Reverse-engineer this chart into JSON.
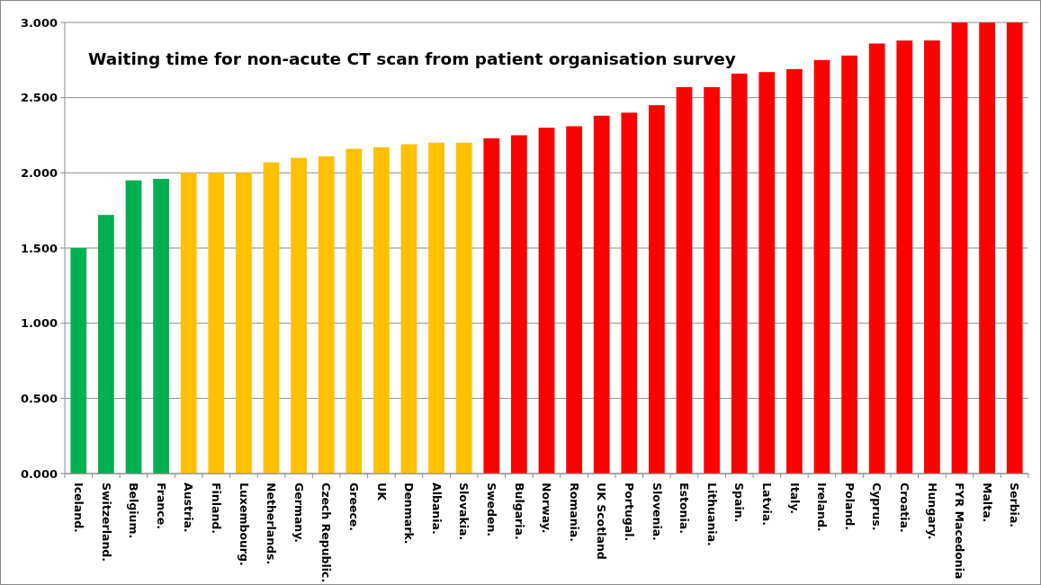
{
  "chart_data": {
    "type": "bar",
    "title": "Waiting time for non-acute CT scan from patient organisation survey",
    "categories": [
      "Iceland.",
      "Switzerland.",
      "Belgium.",
      "France.",
      "Austria.",
      "Finland.",
      "Luxembourg.",
      "Netherlands.",
      "Germany.",
      "Czech Republic.",
      "Greece.",
      "UK",
      "Denmark.",
      "Albania.",
      "Slovakia.",
      "Sweden.",
      "Bulgaria.",
      "Norway.",
      "Romania.",
      "UK Scotland",
      "Portugal.",
      "Slovenia.",
      "Estonia.",
      "Lithuania.",
      "Spain.",
      "Latvia.",
      "Italy.",
      "Ireland.",
      "Poland.",
      "Cyprus.",
      "Croatia.",
      "Hungary.",
      "FYR Macedonia",
      "Malta.",
      "Serbia."
    ],
    "values": [
      1.5,
      1.72,
      1.95,
      1.96,
      2.0,
      2.0,
      2.0,
      2.07,
      2.1,
      2.11,
      2.16,
      2.17,
      2.19,
      2.2,
      2.2,
      2.23,
      2.25,
      2.3,
      2.31,
      2.38,
      2.4,
      2.45,
      2.57,
      2.57,
      2.66,
      2.67,
      2.69,
      2.75,
      2.78,
      2.86,
      2.88,
      2.88,
      3.0,
      3.0,
      3.0
    ],
    "colors": [
      "#00b050",
      "#00b050",
      "#00b050",
      "#00b050",
      "#ffc000",
      "#ffc000",
      "#ffc000",
      "#ffc000",
      "#ffc000",
      "#ffc000",
      "#ffc000",
      "#ffc000",
      "#ffc000",
      "#ffc000",
      "#ffc000",
      "#ff0000",
      "#ff0000",
      "#ff0000",
      "#ff0000",
      "#ff0000",
      "#ff0000",
      "#ff0000",
      "#ff0000",
      "#ff0000",
      "#ff0000",
      "#ff0000",
      "#ff0000",
      "#ff0000",
      "#ff0000",
      "#ff0000",
      "#ff0000",
      "#ff0000",
      "#ff0000",
      "#ff0000",
      "#ff0000"
    ],
    "ylim": [
      0,
      3
    ],
    "yticks": [
      {
        "value": 0,
        "label": "0.000"
      },
      {
        "value": 0.5,
        "label": "0.500"
      },
      {
        "value": 1,
        "label": "1.000"
      },
      {
        "value": 1.5,
        "label": "1.500"
      },
      {
        "value": 2,
        "label": "2.000"
      },
      {
        "value": 2.5,
        "label": "2.500"
      },
      {
        "value": 3,
        "label": "3.000"
      }
    ],
    "grid": "y"
  }
}
